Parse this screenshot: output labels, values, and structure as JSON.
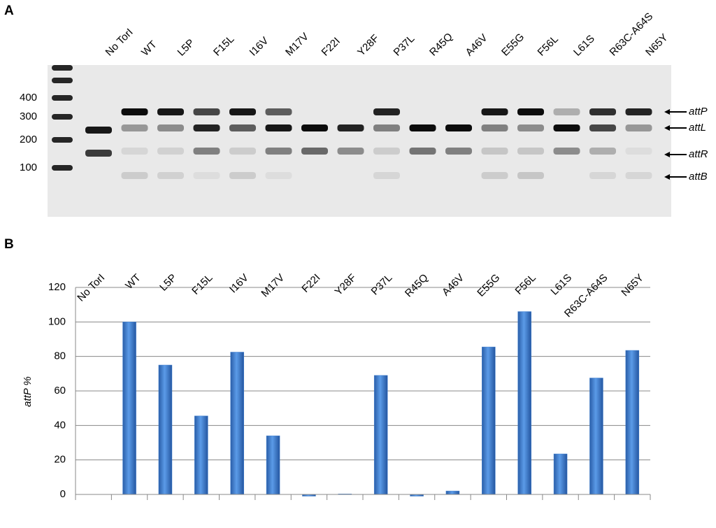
{
  "panel_labels": [
    "A",
    "B"
  ],
  "gel": {
    "lanes": [
      "No TorI",
      "WT",
      "L5P",
      "F15L",
      "I16V",
      "M17V",
      "F22I",
      "Y28F",
      "P37L",
      "R45Q",
      "A46V",
      "E55G",
      "F56L",
      "L61S",
      "R63C-A64S",
      "N65Y"
    ],
    "ladder_labels": [
      "400",
      "300",
      "200",
      "100"
    ],
    "band_labels": [
      "attP",
      "attL",
      "attR",
      "attB"
    ]
  },
  "chart_data": {
    "type": "bar",
    "y_label": "attP %",
    "categories": [
      "No TorI",
      "WT",
      "L5P",
      "F15L",
      "I16V",
      "M17V",
      "F22I",
      "Y28F",
      "P37L",
      "R45Q",
      "A46V",
      "E55G",
      "F56L",
      "L61S",
      "R63C-A64S",
      "N65Y"
    ],
    "values": [
      null,
      100,
      75,
      45.5,
      82.5,
      34,
      -1,
      0.3,
      69,
      -1,
      2,
      85.5,
      106,
      23.5,
      67.5,
      83.5
    ],
    "color": "#3f7fd0",
    "ylim": [
      0,
      120
    ],
    "yticks": [
      0,
      20,
      40,
      60,
      80,
      100,
      120
    ],
    "grid": true
  }
}
